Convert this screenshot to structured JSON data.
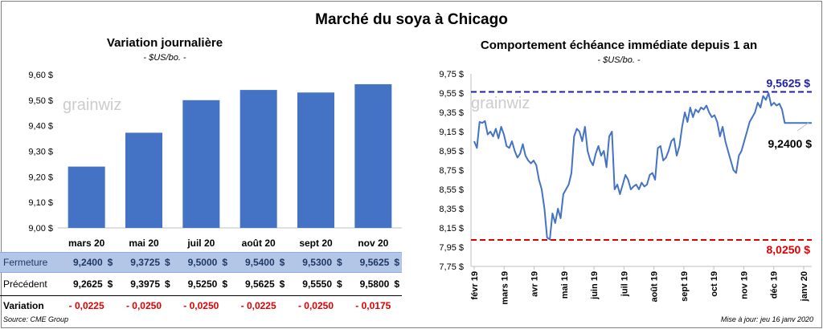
{
  "title": "Marché du soya à Chicago",
  "source": "Source: CME Group",
  "update": "Mise à jour: jeu 16 janv 2020",
  "chart_data": [
    {
      "type": "bar",
      "title": "Variation journalière",
      "subtitle": "- $US/bo. -",
      "categories": [
        "mars 20",
        "mai 20",
        "juil 20",
        "août 20",
        "sept 20",
        "nov 20"
      ],
      "values": [
        9.24,
        9.3725,
        9.5,
        9.54,
        9.53,
        9.5625
      ],
      "ylim": [
        9.0,
        9.6
      ],
      "yticks": [
        "9,00 $",
        "9,10 $",
        "9,20 $",
        "9,30 $",
        "9,40 $",
        "9,50 $",
        "9,60 $"
      ],
      "color": "#4472c4",
      "watermark": "grainwiz"
    },
    {
      "type": "line",
      "title": "Comportement échéance immédiate depuis 1 an",
      "subtitle": "- $US/bo. -",
      "ylim": [
        7.75,
        9.75
      ],
      "yticks": [
        "7,75 $",
        "7,95 $",
        "8,15 $",
        "8,35 $",
        "8,55 $",
        "8,75 $",
        "8,95 $",
        "9,15 $",
        "9,35 $",
        "9,55 $",
        "9,75 $"
      ],
      "xticks": [
        "févr 19",
        "mars 19",
        "avr 19",
        "mai 19",
        "juin 19",
        "juil 19",
        "août 19",
        "sept 19",
        "oct 19",
        "nov 19",
        "déc 19",
        "janv 20"
      ],
      "high": 9.5625,
      "high_label": "9,5625 $",
      "low": 8.025,
      "low_label": "8,0250 $",
      "last": 9.24,
      "last_label": "9,2400 $",
      "line_color": "#4472c4",
      "high_color": "#1f1fa8",
      "low_color": "#e00000",
      "watermark": "grainwiz",
      "x": [
        0,
        2,
        4,
        6,
        8,
        10,
        12,
        14,
        16,
        18,
        20,
        22,
        24,
        26,
        28,
        30,
        32,
        34,
        36,
        38,
        40,
        42,
        44,
        46,
        48,
        50,
        52,
        54,
        56,
        58,
        60,
        62,
        64,
        66,
        68,
        70,
        72,
        74,
        76,
        78,
        80,
        82,
        84,
        86,
        88,
        90,
        92,
        94,
        96,
        98,
        100,
        102,
        104,
        106,
        108,
        110,
        112,
        114,
        116,
        118,
        120,
        122,
        124,
        126,
        128,
        130,
        132,
        134,
        136,
        138,
        140,
        142,
        144,
        146,
        148,
        150,
        152,
        154,
        156,
        158,
        160,
        162,
        164,
        166,
        168,
        170,
        172,
        174,
        176,
        178,
        180,
        182,
        184,
        186,
        188,
        190,
        192,
        194,
        196,
        198,
        200,
        202,
        204,
        206,
        208,
        210,
        212,
        214,
        216,
        218,
        220,
        222,
        224,
        226,
        228,
        230,
        232,
        234,
        236,
        238,
        240,
        242,
        244,
        246,
        248,
        250
      ],
      "y": [
        9.05,
        8.98,
        9.25,
        9.24,
        9.26,
        9.12,
        9.15,
        9.1,
        9.18,
        9.08,
        9.2,
        9.12,
        9.0,
        8.98,
        9.05,
        8.95,
        8.88,
        8.92,
        9.02,
        8.9,
        8.85,
        8.82,
        8.85,
        8.8,
        8.65,
        8.55,
        8.35,
        8.05,
        8.03,
        8.3,
        8.2,
        8.35,
        8.25,
        8.5,
        8.55,
        8.6,
        8.72,
        9.1,
        9.18,
        9.15,
        9.05,
        9.2,
        8.95,
        8.85,
        8.8,
        8.92,
        9.0,
        8.9,
        8.95,
        8.78,
        9.1,
        9.15,
        8.55,
        8.6,
        8.5,
        8.6,
        8.7,
        8.65,
        8.55,
        8.58,
        8.6,
        8.55,
        8.62,
        8.58,
        8.6,
        8.7,
        8.72,
        8.65,
        8.98,
        9.0,
        8.85,
        8.88,
        8.95,
        9.05,
        9.08,
        8.9,
        9.0,
        9.2,
        9.35,
        9.25,
        9.4,
        9.3,
        9.38,
        9.35,
        9.4,
        9.38,
        9.42,
        9.35,
        9.3,
        9.32,
        9.25,
        9.1,
        9.2,
        9.05,
        8.95,
        8.85,
        8.75,
        8.72,
        8.9,
        8.95,
        9.05,
        9.15,
        9.25,
        9.3,
        9.35,
        9.45,
        9.4,
        9.52,
        9.48,
        9.55,
        9.42,
        9.45,
        9.42,
        9.44,
        9.38,
        9.24,
        9.24,
        9.24,
        9.24,
        9.24,
        9.24,
        9.24,
        9.24,
        9.24,
        9.24,
        9.24
      ]
    }
  ],
  "table": {
    "rows": [
      {
        "label": "Fermeture",
        "values": [
          "9,2400",
          "9,3725",
          "9,5000",
          "9,5400",
          "9,5300",
          "9,5625"
        ],
        "unit": "$"
      },
      {
        "label": "Précédent",
        "values": [
          "9,2625",
          "9,3975",
          "9,5250",
          "9,5625",
          "9,5550",
          "9,5800"
        ],
        "unit": "$"
      },
      {
        "label": "Variation",
        "values": [
          "- 0,0225",
          "- 0,0250",
          "- 0,0250",
          "- 0,0225",
          "- 0,0250",
          "- 0,0175"
        ]
      }
    ]
  }
}
